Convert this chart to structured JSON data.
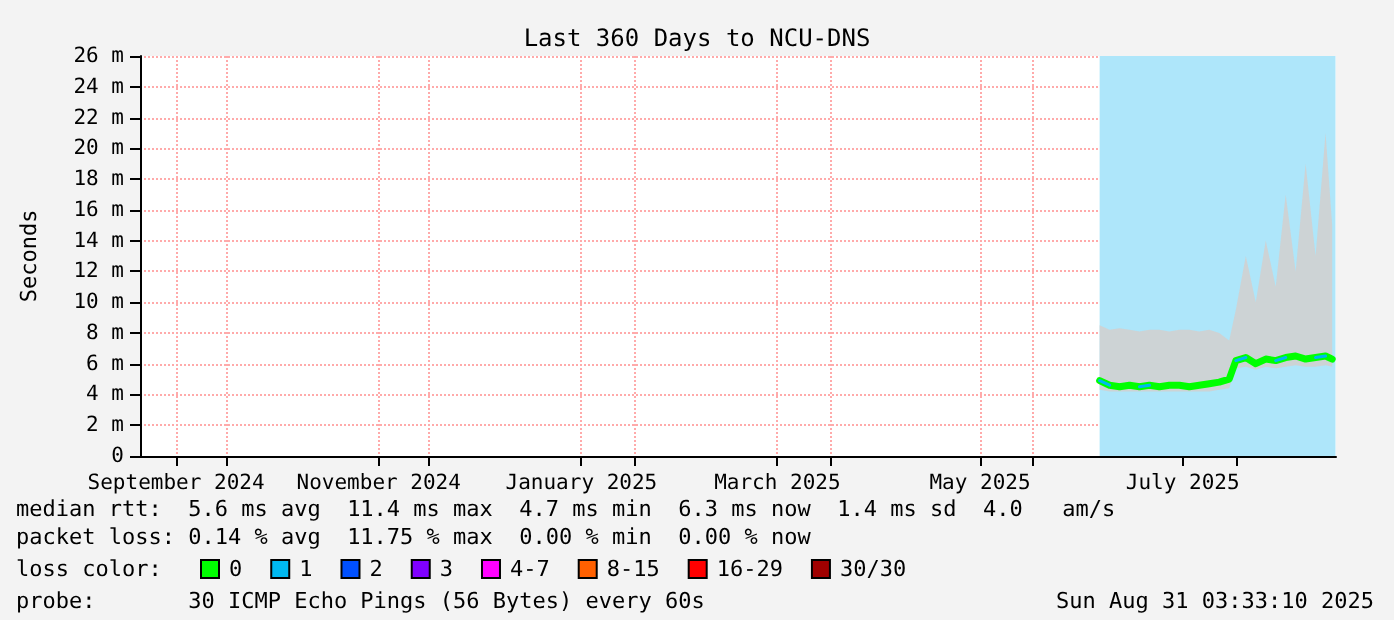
{
  "chart_data": {
    "type": "line",
    "title": "Last 360 Days to NCU-DNS",
    "ylabel": "Seconds",
    "x": [
      "2025-06-21",
      "2025-06-24",
      "2025-06-27",
      "2025-06-30",
      "2025-07-03",
      "2025-07-06",
      "2025-07-09",
      "2025-07-12",
      "2025-07-15",
      "2025-07-18",
      "2025-07-21",
      "2025-07-24",
      "2025-07-27",
      "2025-07-30",
      "2025-08-01",
      "2025-08-04",
      "2025-08-07",
      "2025-08-10",
      "2025-08-13",
      "2025-08-16",
      "2025-08-19",
      "2025-08-22",
      "2025-08-25",
      "2025-08-28",
      "2025-08-30"
    ],
    "series": [
      {
        "name": "0",
        "color": "#00ff00",
        "values": [
          4.9,
          4.6,
          4.5,
          4.6,
          4.5,
          4.6,
          4.5,
          4.6,
          4.6,
          4.5,
          4.6,
          4.7,
          4.8,
          5.0,
          6.2,
          6.4,
          6.0,
          6.3,
          6.2,
          6.4,
          6.5,
          6.3,
          6.4,
          6.5,
          6.3
        ],
        "lower": [
          4.3,
          4.2,
          4.2,
          4.2,
          4.2,
          4.2,
          4.2,
          4.2,
          4.2,
          4.2,
          4.2,
          4.2,
          4.3,
          4.4,
          5.7,
          5.8,
          5.6,
          5.8,
          5.7,
          5.8,
          5.9,
          5.8,
          5.8,
          5.9,
          5.8
        ],
        "upper": [
          8.5,
          8.2,
          8.3,
          8.2,
          8.1,
          8.2,
          8.2,
          8.1,
          8.2,
          8.2,
          8.1,
          8.2,
          8.0,
          7.5,
          9.5,
          13,
          10,
          14,
          11,
          17,
          12,
          19,
          13,
          21,
          15
        ]
      },
      {
        "name": "1",
        "color": "#00b8f0",
        "values": [
          4.9,
          4.6,
          null,
          null,
          4.5,
          4.6,
          null,
          null,
          null,
          null,
          null,
          null,
          null,
          null,
          6.2,
          6.4,
          null,
          null,
          6.2,
          6.4,
          null,
          null,
          6.4,
          6.5,
          null
        ]
      },
      {
        "name": "2",
        "color": "#0050ff",
        "values": [
          null,
          null,
          null,
          null,
          null,
          null,
          null,
          null,
          null,
          null,
          null,
          null,
          null,
          null,
          null,
          null,
          null,
          null,
          null,
          null,
          null,
          null,
          null,
          null,
          null
        ]
      },
      {
        "name": "3",
        "color": "#8000ff",
        "values": [
          null,
          null,
          null,
          null,
          null,
          null,
          null,
          null,
          null,
          null,
          null,
          null,
          null,
          null,
          null,
          null,
          null,
          null,
          null,
          null,
          null,
          null,
          null,
          null,
          null
        ]
      },
      {
        "name": "4-7",
        "color": "#ff00ff",
        "values": [
          null,
          null,
          null,
          null,
          null,
          null,
          null,
          null,
          null,
          null,
          null,
          null,
          null,
          null,
          null,
          null,
          null,
          null,
          null,
          null,
          null,
          null,
          null,
          null,
          null
        ]
      },
      {
        "name": "8-15",
        "color": "#ff6000",
        "values": [
          null,
          null,
          null,
          null,
          null,
          null,
          null,
          null,
          null,
          null,
          null,
          null,
          null,
          null,
          null,
          null,
          null,
          null,
          null,
          null,
          null,
          null,
          null,
          null,
          null
        ]
      },
      {
        "name": "16-29",
        "color": "#ff0000",
        "values": [
          null,
          null,
          null,
          null,
          null,
          null,
          null,
          null,
          null,
          null,
          null,
          null,
          null,
          null,
          null,
          null,
          null,
          null,
          null,
          null,
          null,
          null,
          null,
          null,
          null
        ]
      },
      {
        "name": "30/30",
        "color": "#a00000",
        "values": [
          null,
          null,
          null,
          null,
          null,
          null,
          null,
          null,
          null,
          null,
          null,
          null,
          null,
          null,
          null,
          null,
          null,
          null,
          null,
          null,
          null,
          null,
          null,
          null,
          null
        ]
      }
    ],
    "bands": [
      {
        "axis": "x",
        "from": "2025-06-21",
        "to": "2025-08-31",
        "color": "#aee6fa"
      }
    ],
    "xlim": [
      "2024-09-05T03:33",
      "2025-08-31T03:33"
    ],
    "xticks": [
      {
        "value": "2024-09-16",
        "label": "September 2024"
      },
      {
        "value": "2024-10-01",
        "label": null
      },
      {
        "value": "2024-11-16",
        "label": "November 2024"
      },
      {
        "value": "2024-12-01",
        "label": null
      },
      {
        "value": "2025-01-16",
        "label": "January 2025"
      },
      {
        "value": "2025-02-01",
        "label": null
      },
      {
        "value": "2025-03-16",
        "label": "March 2025"
      },
      {
        "value": "2025-04-01",
        "label": null
      },
      {
        "value": "2025-05-16",
        "label": "May 2025"
      },
      {
        "value": "2025-06-01",
        "label": null
      },
      {
        "value": "2025-07-16",
        "label": "July 2025"
      },
      {
        "value": "2025-08-01",
        "label": null
      }
    ],
    "ylim": [
      0,
      26
    ],
    "yticks": [
      0,
      {
        "value": 2,
        "label": "2 m"
      },
      {
        "value": 4,
        "label": "4 m"
      },
      {
        "value": 6,
        "label": "6 m"
      },
      {
        "value": 8,
        "label": "8 m"
      },
      {
        "value": 10,
        "label": "10 m"
      },
      {
        "value": 12,
        "label": "12 m"
      },
      {
        "value": 14,
        "label": "14 m"
      },
      {
        "value": 16,
        "label": "16 m"
      },
      {
        "value": 18,
        "label": "18 m"
      },
      {
        "value": 20,
        "label": "20 m"
      },
      {
        "value": 22,
        "label": "22 m"
      },
      {
        "value": 24,
        "label": "24 m"
      },
      {
        "value": 26,
        "label": "26 m"
      }
    ],
    "grid": true,
    "legend": "bottom left",
    "legend_title": "loss color:",
    "marker": "none",
    "line_style": "solid",
    "annotations": [
      "median rtt:  5.6 ms avg  11.4 ms max  4.7 ms min  6.3 ms now  1.4 ms sd  4.0   am/s",
      "packet loss: 0.14 % avg  11.75 % max  0.00 % min  0.00 % now",
      "probe:       30 ICMP Echo Pings (56 Bytes) every 60s",
      "Sun Aug 31 03:33:10 2025"
    ]
  }
}
